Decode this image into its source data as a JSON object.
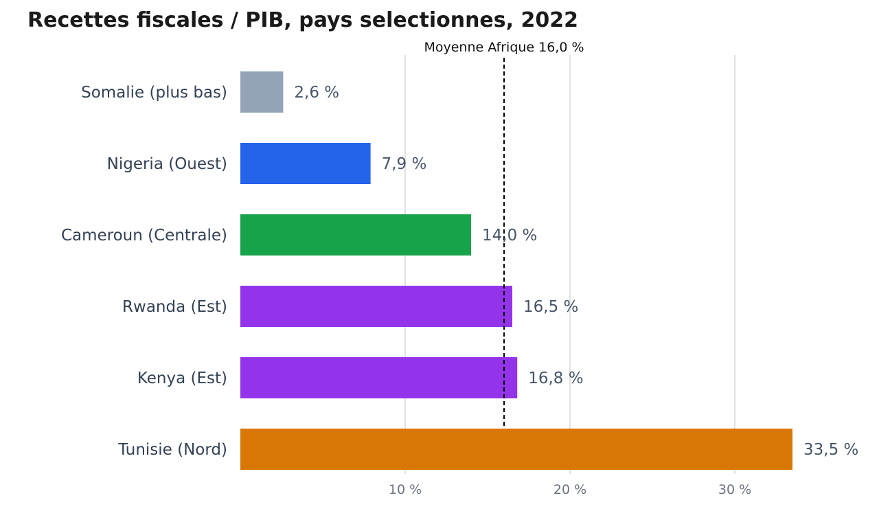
{
  "chart_data": {
    "type": "bar",
    "orientation": "horizontal",
    "title": "Recettes fiscales / PIB, pays selectionnes, 2022",
    "categories": [
      "Somalie (plus bas)",
      "Nigeria (Ouest)",
      "Cameroun (Centrale)",
      "Rwanda (Est)",
      "Kenya (Est)",
      "Tunisie (Nord)"
    ],
    "values": [
      2.6,
      7.9,
      14.0,
      16.5,
      16.8,
      33.5
    ],
    "value_labels": [
      "2,6 %",
      "7,9 %",
      "14,0 %",
      "16,5 %",
      "16,8 %",
      "33,5 %"
    ],
    "colors": [
      "#94a3b8",
      "#2563eb",
      "#16a34a",
      "#9333ea",
      "#9333ea",
      "#d97706"
    ],
    "xlim": [
      0,
      35
    ],
    "xticks": [
      10,
      20,
      30
    ],
    "xtick_labels": [
      "10 %",
      "20 %",
      "30 %"
    ],
    "grid": "vertical",
    "reference_line": {
      "value": 16.0,
      "label": "Moyenne Afrique 16,0 %",
      "style": "dashed",
      "color": "#000000"
    },
    "xlabel": "",
    "ylabel": ""
  }
}
